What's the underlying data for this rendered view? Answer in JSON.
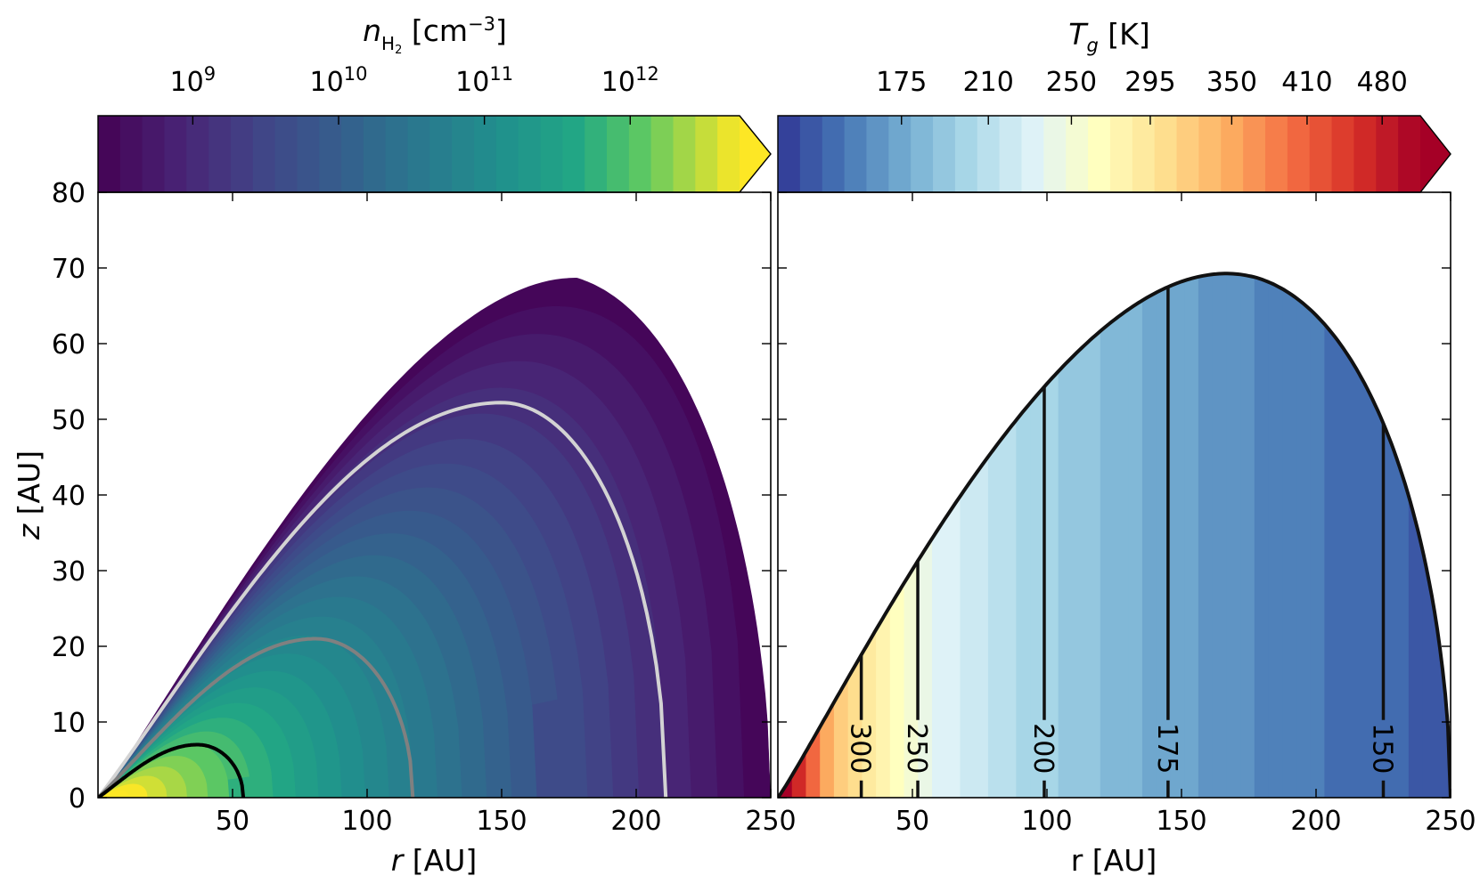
{
  "chart_data": [
    {
      "type": "heatmap",
      "panel": "left",
      "quantity": "n_H2",
      "colorbar": {
        "label_base": "n",
        "label_sub": "H",
        "label_subsub": "2",
        "label_rest": " [cm",
        "label_exp": "−3",
        "label_close": "]",
        "tick_base": "10",
        "ticks": [
          {
            "value": 1000000000.0,
            "exp": "9"
          },
          {
            "value": 10000000000.0,
            "exp": "10"
          },
          {
            "value": 100000000000.0,
            "exp": "11"
          },
          {
            "value": 1000000000000.0,
            "exp": "12"
          }
        ],
        "log_range": [
          8.35,
          12.75
        ],
        "n_levels": 29,
        "extend": "max",
        "colormap": "viridis"
      },
      "xlabel": "r",
      "xlabel_unit": " [AU]",
      "ylabel": "z",
      "ylabel_unit": " [AU]",
      "xlim": [
        0,
        250
      ],
      "ylim": [
        0,
        80
      ],
      "xticks": [
        50,
        100,
        150,
        200,
        250
      ],
      "yticks": [
        0,
        10,
        20,
        30,
        40,
        50,
        60,
        70,
        80
      ],
      "outline": {
        "r_max": 250,
        "peak_r": 178,
        "peak_z": 68.7
      },
      "contours": [
        {
          "color": "#d3d3d3",
          "r_outer": 211,
          "r_peak": 150,
          "z_peak": 52.2
        },
        {
          "color": "#808080",
          "r_outer": 117,
          "r_peak": 81,
          "z_peak": 21.0
        },
        {
          "color": "#000000",
          "r_outer": 54,
          "r_peak": 37,
          "z_peak": 7.0
        }
      ]
    },
    {
      "type": "heatmap",
      "panel": "right",
      "quantity": "T_g",
      "colorbar": {
        "label_base": "T",
        "label_sub": "g",
        "label_rest": " [K]",
        "ticks": [
          175,
          210,
          250,
          295,
          350,
          410,
          480
        ],
        "range": [
          135,
          520
        ],
        "n_levels": 29,
        "extend": "max",
        "colormap": "RdYlBu_r"
      },
      "xlabel": "r [AU]",
      "xlim": [
        0,
        250
      ],
      "ylim": [
        0,
        80
      ],
      "xticks": [
        50,
        100,
        150,
        200,
        250
      ],
      "outline": {
        "r_max": 250,
        "peak_r": 178,
        "peak_z": 68.7
      },
      "contours": [
        {
          "label": "300",
          "r": 31
        },
        {
          "label": "250",
          "r": 52
        },
        {
          "label": "200",
          "r": 99
        },
        {
          "label": "175",
          "r": 145
        },
        {
          "label": "150",
          "r": 225
        }
      ],
      "contour_label_z": 6.5
    }
  ]
}
